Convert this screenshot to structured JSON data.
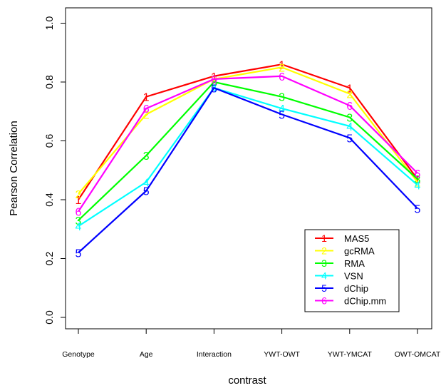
{
  "chart_data": {
    "type": "line",
    "title": "",
    "xlabel": "contrast",
    "ylabel": "Pearson Correlation",
    "categories": [
      "Genotype",
      "Age",
      "Interaction",
      "YWT-OWT",
      "YWT-YMCAT",
      "OWT-OMCAT"
    ],
    "ylim": [
      0.0,
      1.0
    ],
    "yticks": [
      "0.0",
      "0.2",
      "0.4",
      "0.6",
      "0.8",
      "1.0"
    ],
    "grid": false,
    "legend_position": "bottom-right",
    "series": [
      {
        "name": "MAS5",
        "symbol": "1",
        "color": "#ff0000",
        "values": [
          0.4,
          0.75,
          0.82,
          0.86,
          0.78,
          0.47
        ]
      },
      {
        "name": "gcRMA",
        "symbol": "2",
        "color": "#ffff00",
        "values": [
          0.42,
          0.69,
          0.81,
          0.85,
          0.76,
          0.46
        ]
      },
      {
        "name": "RMA",
        "symbol": "3",
        "color": "#00ff00",
        "values": [
          0.33,
          0.55,
          0.8,
          0.75,
          0.68,
          0.47
        ]
      },
      {
        "name": "VSN",
        "symbol": "4",
        "color": "#00ffff",
        "values": [
          0.31,
          0.46,
          0.78,
          0.71,
          0.65,
          0.45
        ]
      },
      {
        "name": "dChip",
        "symbol": "5",
        "color": "#0000ff",
        "values": [
          0.22,
          0.43,
          0.78,
          0.69,
          0.61,
          0.37
        ]
      },
      {
        "name": "dChip.mm",
        "symbol": "6",
        "color": "#ff00ff",
        "values": [
          0.36,
          0.71,
          0.81,
          0.82,
          0.72,
          0.49
        ]
      }
    ]
  }
}
